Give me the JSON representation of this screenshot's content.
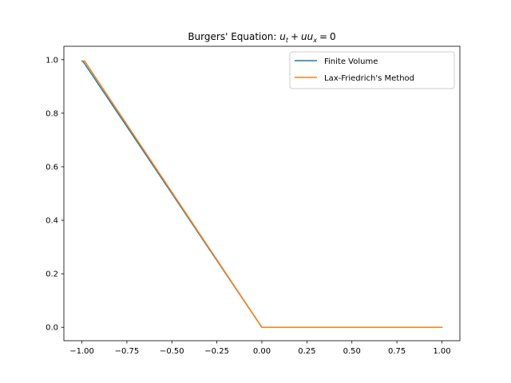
{
  "chart_data": {
    "type": "line",
    "title": {
      "prefix": "Burgers' Equation: ",
      "math": [
        "u",
        "t",
        "+",
        "u",
        "u",
        "x",
        "=",
        "0"
      ]
    },
    "xlabel": "",
    "ylabel": "",
    "xlim": [
      -1.1,
      1.1
    ],
    "ylim": [
      -0.05,
      1.05
    ],
    "xticks": [
      -1.0,
      -0.75,
      -0.5,
      -0.25,
      0.0,
      0.25,
      0.5,
      0.75,
      1.0
    ],
    "xtick_labels": [
      "−1.00",
      "−0.75",
      "−0.50",
      "−0.25",
      "0.00",
      "0.25",
      "0.50",
      "0.75",
      "1.00"
    ],
    "yticks": [
      0.0,
      0.2,
      0.4,
      0.6,
      0.8,
      1.0
    ],
    "ytick_labels": [
      "0.0",
      "0.2",
      "0.4",
      "0.6",
      "0.8",
      "1.0"
    ],
    "grid": false,
    "legend_position": "top-right",
    "series": [
      {
        "name": "Finite Volume",
        "color": "#1f77b4",
        "x": [
          -1.0,
          -0.99,
          -0.5,
          0.0,
          1.0
        ],
        "y": [
          0.995,
          0.99,
          0.5,
          0.0,
          0.0
        ]
      },
      {
        "name": "Lax-Friedrich's Method",
        "color": "#ff7f0e",
        "x": [
          -1.0,
          -0.985,
          -0.5,
          0.0,
          1.0
        ],
        "y": [
          0.995,
          0.995,
          0.505,
          0.0,
          0.0
        ]
      }
    ]
  }
}
